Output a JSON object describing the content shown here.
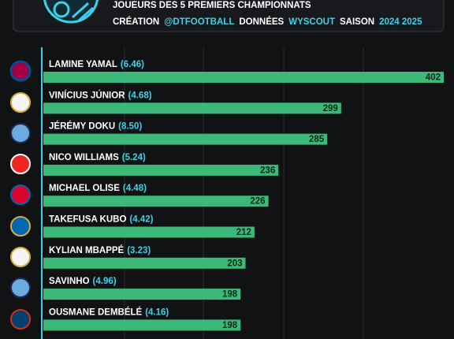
{
  "chart_data": {
    "type": "barh",
    "subtitle": "JOUEURS DES 5 PREMIERS CHAMPIONNATS",
    "credits": [
      {
        "text": "CRÉATION",
        "highlight": false
      },
      {
        "text": "@DTFOOTBALL",
        "highlight": true
      },
      {
        "text": "DONNÉES",
        "highlight": false
      },
      {
        "text": "WYSCOUT",
        "highlight": true
      },
      {
        "text": "SAISON",
        "highlight": false
      },
      {
        "text": "2024 2025",
        "highlight": true
      }
    ],
    "categories": [
      "LAMINE YAMAL",
      "VINÍCIUS JÚNIOR",
      "JÉRÉMY DOKU",
      "NICO WILLIAMS",
      "MICHAEL OLISE",
      "TAKEFUSA KUBO",
      "KYLIAN MBAPPÉ",
      "SAVINHO",
      "OUSMANE DEMBÉLÉ"
    ],
    "category_notes": [
      "(6.46)",
      "(4.68)",
      "(8.50)",
      "(5.24)",
      "(4.48)",
      "(4.42)",
      "(3.23)",
      "(4.96)",
      "(4.16)"
    ],
    "values": [
      402,
      299,
      285,
      236,
      226,
      212,
      203,
      198,
      198
    ],
    "xlim": [
      0,
      402
    ],
    "color": "#3cb878",
    "highlight_color": "#3fd0e8",
    "text_color": "#ffffff"
  }
}
